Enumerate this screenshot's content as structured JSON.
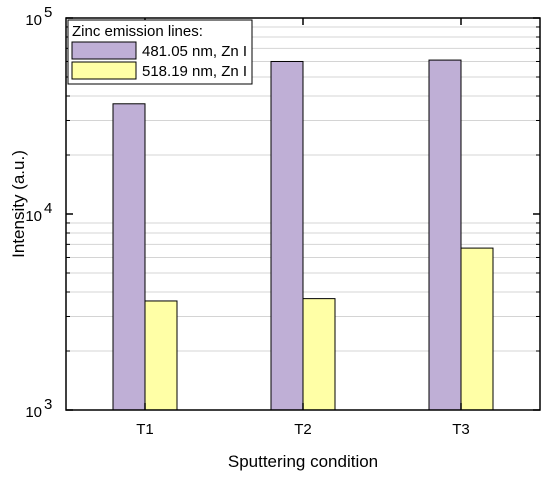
{
  "chart_data": {
    "type": "bar",
    "categories": [
      "T1",
      "T2",
      "T3"
    ],
    "series": [
      {
        "name": "481.05 nm, Zn I",
        "values": [
          36500,
          60000,
          61000
        ],
        "color": "#bfafd6"
      },
      {
        "name": "518.19 nm, Zn I",
        "values": [
          3600,
          3700,
          6700
        ],
        "color": "#ffffa6"
      }
    ],
    "xlabel": "Sputtering condition",
    "ylabel": "Intensity (a.u.)",
    "yscale": "log",
    "ylim": [
      1000,
      100000
    ],
    "y_ticks": [
      {
        "base": "10",
        "exp": "3",
        "value": 1000
      },
      {
        "base": "10",
        "exp": "4",
        "value": 10000
      },
      {
        "base": "10",
        "exp": "5",
        "value": 100000
      }
    ],
    "grid": true,
    "legend": {
      "title": "Zinc emission lines:",
      "placement": "top-left"
    }
  }
}
